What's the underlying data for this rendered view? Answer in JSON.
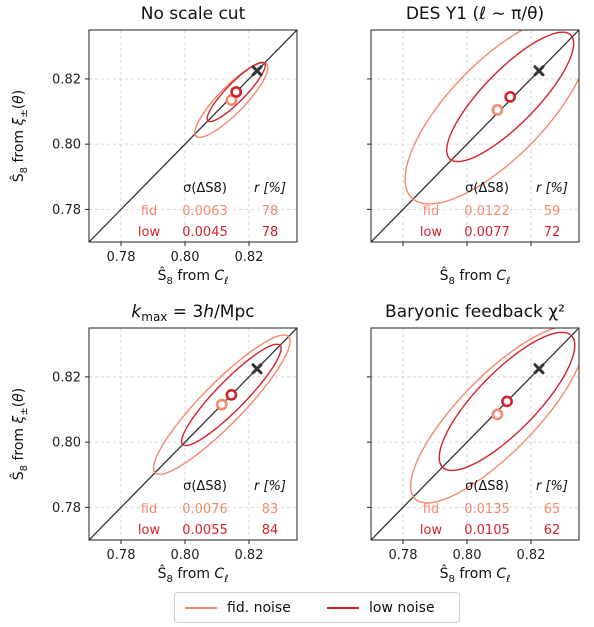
{
  "colors": {
    "fid": "#f4896b",
    "low": "#d3222c",
    "truth": "#333333",
    "grid": "#cccccc",
    "diag": "#333333"
  },
  "legend": {
    "fid_label": "fid. noise",
    "low_label": "low noise"
  },
  "chart_data": [
    {
      "type": "scatter",
      "title": "No scale cut",
      "xlabel": "S8 from C_ell",
      "ylabel": "S8 from xi_pm(theta)",
      "xlim": [
        0.77,
        0.835
      ],
      "ylim": [
        0.77,
        0.835
      ],
      "xticks": [
        "0.78",
        "0.80",
        "0.82"
      ],
      "yticks": [
        "0.78",
        "0.80",
        "0.82"
      ],
      "grid": true,
      "truth": [
        0.8225,
        0.8225
      ],
      "stats_header": {
        "sigma": "σ(ΔS8)",
        "r": "r [%]"
      },
      "series": [
        {
          "name": "fid",
          "center": [
            0.8145,
            0.8135
          ],
          "ellipse": {
            "a": 0.0156,
            "b": 0.0041,
            "angle_deg": 45
          },
          "sigma": "0.0063",
          "r": "78"
        },
        {
          "name": "low",
          "center": [
            0.816,
            0.816
          ],
          "ellipse": {
            "a": 0.0125,
            "b": 0.0029,
            "angle_deg": 45
          },
          "sigma": "0.0045",
          "r": "78"
        }
      ]
    },
    {
      "type": "scatter",
      "title": "DES Y1 (ℓ ∼ π/θ)",
      "xlabel": "S8 from C_ell",
      "ylabel": "",
      "xlim": [
        0.77,
        0.835
      ],
      "ylim": [
        0.77,
        0.835
      ],
      "xticks": [],
      "yticks": [],
      "grid": true,
      "truth": [
        0.8225,
        0.8225
      ],
      "stats_header": {
        "sigma": "σ(ΔS8)",
        "r": "r [%]"
      },
      "series": [
        {
          "name": "fid",
          "center": [
            0.8095,
            0.8105
          ],
          "ellipse": {
            "a": 0.038,
            "b": 0.0148,
            "angle_deg": 45
          },
          "sigma": "0.0122",
          "r": "59"
        },
        {
          "name": "low",
          "center": [
            0.8135,
            0.8145
          ],
          "ellipse": {
            "a": 0.0268,
            "b": 0.0083,
            "angle_deg": 45
          },
          "sigma": "0.0077",
          "r": "72"
        }
      ]
    },
    {
      "type": "scatter",
      "title": "k_max = 3h/Mpc",
      "xlabel": "S8 from C_ell",
      "ylabel": "S8 from xi_pm(theta)",
      "xlim": [
        0.77,
        0.835
      ],
      "ylim": [
        0.77,
        0.835
      ],
      "xticks": [
        "0.78",
        "0.80",
        "0.82"
      ],
      "yticks": [
        "0.78",
        "0.80",
        "0.82"
      ],
      "grid": true,
      "truth": [
        0.8225,
        0.8225
      ],
      "stats_header": {
        "sigma": "σ(ΔS8)",
        "r": "r [%]"
      },
      "series": [
        {
          "name": "fid",
          "center": [
            0.8115,
            0.8115
          ],
          "ellipse": {
            "a": 0.0295,
            "b": 0.0064,
            "angle_deg": 45
          },
          "sigma": "0.0076",
          "r": "83"
        },
        {
          "name": "low",
          "center": [
            0.8145,
            0.8145
          ],
          "ellipse": {
            "a": 0.0215,
            "b": 0.0045,
            "angle_deg": 45
          },
          "sigma": "0.0055",
          "r": "84"
        }
      ]
    },
    {
      "type": "scatter",
      "title": "Baryonic feedback χ²",
      "xlabel": "S8 from C_ell",
      "ylabel": "",
      "xlim": [
        0.77,
        0.835
      ],
      "ylim": [
        0.77,
        0.835
      ],
      "xticks": [
        "0.78",
        "0.80",
        "0.82"
      ],
      "yticks": [],
      "grid": true,
      "truth": [
        0.8225,
        0.8225
      ],
      "stats_header": {
        "sigma": "σ(ΔS8)",
        "r": "r [%]"
      },
      "series": [
        {
          "name": "fid",
          "center": [
            0.8095,
            0.8085
          ],
          "ellipse": {
            "a": 0.0365,
            "b": 0.0118,
            "angle_deg": 45
          },
          "sigma": "0.0135",
          "r": "65"
        },
        {
          "name": "low",
          "center": [
            0.8125,
            0.8125
          ],
          "ellipse": {
            "a": 0.0285,
            "b": 0.0092,
            "angle_deg": 45
          },
          "sigma": "0.0105",
          "r": "62"
        }
      ]
    }
  ]
}
